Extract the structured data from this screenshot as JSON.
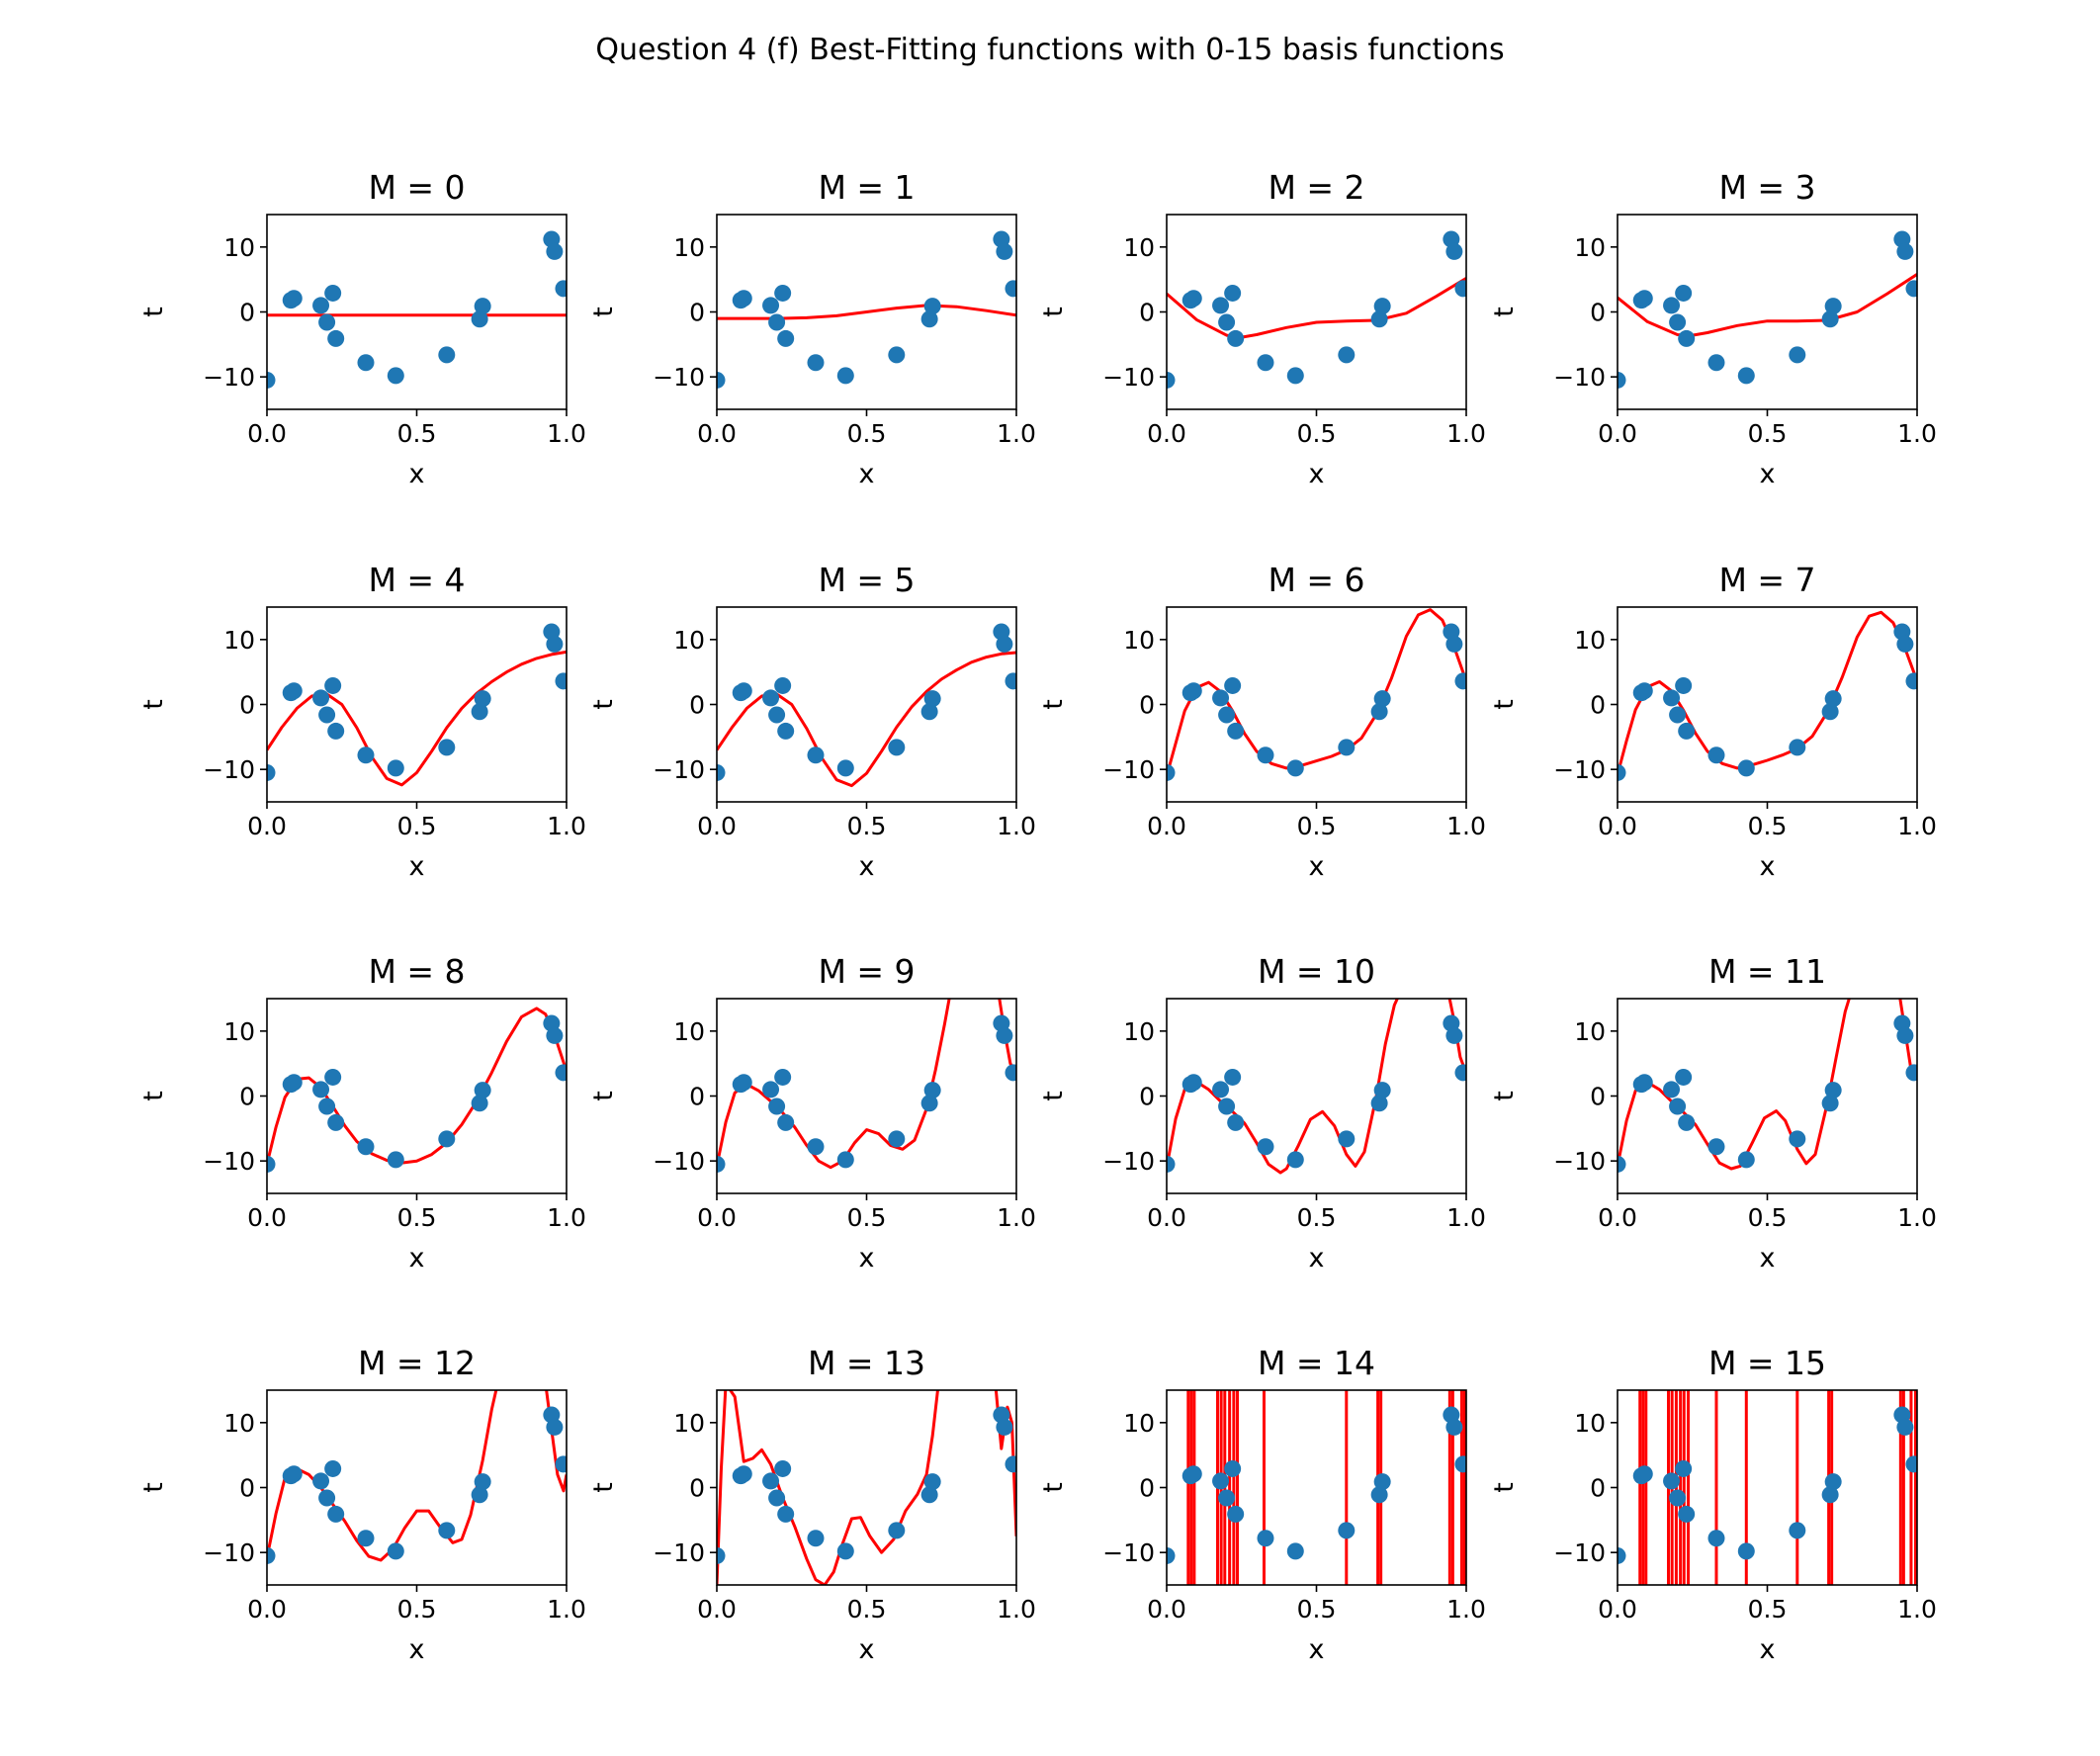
{
  "figure": {
    "title": "Question 4 (f) Best-Fitting functions with 0-15 basis functions"
  },
  "colors": {
    "points": "#1f77b4",
    "curve": "#ff0000",
    "axes": "#000000",
    "background": "#ffffff"
  },
  "chart_data": {
    "type": "scatter",
    "layout": "4x4 grid",
    "shared": {
      "xlabel": "x",
      "ylabel": "t",
      "xlim": [
        0.0,
        1.0
      ],
      "ylim": [
        -15,
        15
      ],
      "xticks": [
        0.0,
        0.5,
        1.0
      ],
      "xtick_labels": [
        "0.0",
        "0.5",
        "1.0"
      ],
      "yticks": [
        10,
        0,
        -10
      ],
      "ytick_labels": [
        "10",
        "0",
        "−10"
      ],
      "points": {
        "x": [
          0.0,
          0.08,
          0.09,
          0.18,
          0.2,
          0.22,
          0.23,
          0.33,
          0.43,
          0.6,
          0.71,
          0.72,
          0.95,
          0.96,
          0.99
        ],
        "y": [
          -10.5,
          1.8,
          2.1,
          1.0,
          -1.6,
          2.9,
          -4.1,
          -7.8,
          -9.8,
          -6.6,
          -1.1,
          0.9,
          11.2,
          9.3,
          3.6
        ]
      }
    },
    "panels": [
      {
        "title": "M = 0",
        "curve": {
          "x": [
            0,
            0.25,
            0.5,
            0.75,
            1
          ],
          "y": [
            -0.5,
            -0.5,
            -0.5,
            -0.5,
            -0.5
          ]
        }
      },
      {
        "title": "M = 1",
        "curve": {
          "x": [
            0,
            0.1,
            0.2,
            0.3,
            0.4,
            0.5,
            0.6,
            0.7,
            0.8,
            0.9,
            1.0
          ],
          "y": [
            -1.0,
            -1.0,
            -1.0,
            -0.9,
            -0.6,
            0.0,
            0.6,
            1.0,
            0.8,
            0.2,
            -0.5
          ]
        }
      },
      {
        "title": "M = 2",
        "curve": {
          "x": [
            0,
            0.1,
            0.2,
            0.25,
            0.3,
            0.4,
            0.5,
            0.6,
            0.7,
            0.8,
            0.9,
            1.0
          ],
          "y": [
            2.8,
            -1.2,
            -3.6,
            -3.9,
            -3.5,
            -2.4,
            -1.6,
            -1.4,
            -1.3,
            -0.2,
            2.4,
            5.2
          ]
        }
      },
      {
        "title": "M = 3",
        "curve": {
          "x": [
            0,
            0.1,
            0.2,
            0.25,
            0.3,
            0.4,
            0.5,
            0.6,
            0.7,
            0.8,
            0.9,
            1.0
          ],
          "y": [
            2.2,
            -1.5,
            -3.5,
            -3.6,
            -3.2,
            -2.1,
            -1.4,
            -1.4,
            -1.3,
            0.0,
            2.8,
            5.8
          ]
        }
      },
      {
        "title": "M = 4",
        "curve": {
          "x": [
            0,
            0.05,
            0.1,
            0.15,
            0.2,
            0.25,
            0.3,
            0.35,
            0.4,
            0.45,
            0.5,
            0.55,
            0.6,
            0.65,
            0.7,
            0.75,
            0.8,
            0.85,
            0.9,
            0.95,
            1.0
          ],
          "y": [
            -7.0,
            -3.5,
            -0.6,
            1.3,
            1.6,
            0.0,
            -3.6,
            -8.1,
            -11.4,
            -12.4,
            -10.5,
            -7.2,
            -3.6,
            -0.6,
            1.7,
            3.5,
            5.0,
            6.2,
            7.1,
            7.7,
            8.1
          ]
        }
      },
      {
        "title": "M = 5",
        "curve": {
          "x": [
            0,
            0.05,
            0.1,
            0.15,
            0.2,
            0.25,
            0.3,
            0.35,
            0.4,
            0.45,
            0.5,
            0.55,
            0.6,
            0.65,
            0.7,
            0.75,
            0.8,
            0.85,
            0.9,
            0.95,
            1.0
          ],
          "y": [
            -7.0,
            -3.6,
            -0.6,
            1.3,
            1.6,
            0.0,
            -3.7,
            -8.2,
            -11.6,
            -12.5,
            -10.6,
            -7.2,
            -3.5,
            -0.4,
            2.0,
            3.9,
            5.3,
            6.5,
            7.3,
            7.8,
            8.0
          ]
        }
      },
      {
        "title": "M = 6",
        "curve": {
          "x": [
            0,
            0.03,
            0.06,
            0.1,
            0.14,
            0.18,
            0.22,
            0.26,
            0.3,
            0.35,
            0.4,
            0.45,
            0.5,
            0.55,
            0.6,
            0.65,
            0.7,
            0.75,
            0.8,
            0.84,
            0.88,
            0.92,
            0.96,
            1.0
          ],
          "y": [
            -11.0,
            -6.0,
            -1.0,
            2.6,
            3.4,
            2.0,
            -1.0,
            -4.5,
            -7.2,
            -9.1,
            -9.8,
            -9.4,
            -8.7,
            -8.0,
            -7.0,
            -5.2,
            -1.5,
            4.0,
            10.5,
            13.8,
            14.6,
            13.0,
            8.8,
            3.6
          ]
        }
      },
      {
        "title": "M = 7",
        "curve": {
          "x": [
            0,
            0.03,
            0.06,
            0.1,
            0.14,
            0.18,
            0.22,
            0.26,
            0.3,
            0.35,
            0.4,
            0.45,
            0.5,
            0.55,
            0.6,
            0.65,
            0.7,
            0.75,
            0.8,
            0.84,
            0.88,
            0.92,
            0.96,
            1.0
          ],
          "y": [
            -10.8,
            -5.6,
            -0.8,
            2.7,
            3.5,
            2.1,
            -0.9,
            -4.4,
            -7.2,
            -9.1,
            -9.8,
            -9.3,
            -8.6,
            -7.8,
            -6.8,
            -4.9,
            -1.2,
            4.2,
            10.4,
            13.6,
            14.2,
            12.6,
            8.6,
            3.6
          ]
        }
      },
      {
        "title": "M = 8",
        "curve": {
          "x": [
            0,
            0.03,
            0.06,
            0.1,
            0.14,
            0.18,
            0.22,
            0.26,
            0.3,
            0.35,
            0.4,
            0.45,
            0.5,
            0.55,
            0.6,
            0.65,
            0.7,
            0.75,
            0.8,
            0.85,
            0.9,
            0.93,
            0.96,
            1.0
          ],
          "y": [
            -10.5,
            -4.8,
            -0.2,
            2.6,
            2.8,
            1.3,
            -1.6,
            -4.6,
            -7.0,
            -8.9,
            -9.9,
            -10.3,
            -10.0,
            -9.0,
            -7.2,
            -4.4,
            -0.8,
            3.6,
            8.4,
            12.2,
            13.5,
            12.6,
            9.4,
            3.8
          ]
        }
      },
      {
        "title": "M = 9",
        "curve": {
          "x": [
            0,
            0.03,
            0.06,
            0.1,
            0.14,
            0.18,
            0.22,
            0.26,
            0.3,
            0.34,
            0.38,
            0.42,
            0.46,
            0.5,
            0.54,
            0.58,
            0.62,
            0.66,
            0.7,
            0.73,
            0.76,
            0.78,
            0.94,
            0.96,
            0.98,
            1.0
          ],
          "y": [
            -10.8,
            -4.0,
            0.5,
            1.8,
            0.8,
            -0.8,
            -2.6,
            -4.8,
            -7.6,
            -10.0,
            -11.0,
            -10.0,
            -7.2,
            -5.2,
            -5.8,
            -7.6,
            -8.2,
            -6.8,
            -2.0,
            4.0,
            11.0,
            16.0,
            16.0,
            10.0,
            5.0,
            3.5
          ]
        }
      },
      {
        "title": "M = 10",
        "curve": {
          "x": [
            0,
            0.03,
            0.06,
            0.1,
            0.14,
            0.18,
            0.22,
            0.26,
            0.3,
            0.34,
            0.38,
            0.4,
            0.44,
            0.48,
            0.52,
            0.56,
            0.6,
            0.63,
            0.66,
            0.7,
            0.73,
            0.76,
            0.78,
            0.94,
            0.96,
            0.98,
            1.0
          ],
          "y": [
            -11.0,
            -3.5,
            1.0,
            2.2,
            1.0,
            -0.8,
            -2.4,
            -4.2,
            -7.2,
            -10.5,
            -11.8,
            -11.2,
            -7.6,
            -3.6,
            -2.4,
            -4.6,
            -9.0,
            -10.8,
            -8.6,
            0.0,
            8.0,
            14.0,
            16.0,
            16.0,
            11.5,
            6.0,
            3.5
          ]
        }
      },
      {
        "title": "M = 11",
        "curve": {
          "x": [
            0,
            0.03,
            0.06,
            0.1,
            0.14,
            0.18,
            0.22,
            0.26,
            0.3,
            0.34,
            0.38,
            0.41,
            0.45,
            0.49,
            0.53,
            0.56,
            0.6,
            0.63,
            0.66,
            0.7,
            0.73,
            0.76,
            0.78,
            0.94,
            0.96,
            0.98,
            1.0
          ],
          "y": [
            -10.8,
            -3.8,
            0.8,
            2.1,
            1.0,
            -0.8,
            -2.5,
            -4.4,
            -7.4,
            -10.3,
            -11.2,
            -10.8,
            -7.2,
            -3.4,
            -2.3,
            -3.8,
            -8.2,
            -10.4,
            -9.0,
            -1.2,
            6.0,
            13.0,
            16.0,
            16.0,
            10.0,
            4.0,
            3.0
          ]
        }
      },
      {
        "title": "M = 12",
        "curve": {
          "x": [
            0,
            0.03,
            0.06,
            0.1,
            0.14,
            0.18,
            0.22,
            0.26,
            0.3,
            0.34,
            0.38,
            0.42,
            0.46,
            0.5,
            0.54,
            0.58,
            0.62,
            0.65,
            0.68,
            0.72,
            0.75,
            0.77,
            0.93,
            0.95,
            0.97,
            0.99,
            1.0
          ],
          "y": [
            -10.8,
            -4.0,
            1.5,
            2.9,
            2.0,
            0.0,
            -2.6,
            -5.2,
            -8.2,
            -10.6,
            -11.2,
            -9.5,
            -6.2,
            -3.6,
            -3.6,
            -6.2,
            -8.5,
            -8.0,
            -4.2,
            4.2,
            12.0,
            16.0,
            16.0,
            9.0,
            2.0,
            -0.5,
            2.0
          ]
        }
      },
      {
        "title": "M = 13",
        "curve": {
          "x": [
            0,
            0.015,
            0.03,
            0.06,
            0.09,
            0.12,
            0.15,
            0.18,
            0.22,
            0.26,
            0.3,
            0.33,
            0.36,
            0.39,
            0.42,
            0.45,
            0.48,
            0.51,
            0.55,
            0.59,
            0.63,
            0.67,
            0.7,
            0.72,
            0.74,
            0.93,
            0.95,
            0.97,
            0.985,
            1.0
          ],
          "y": [
            -15.0,
            3.0,
            16.0,
            14.0,
            4.0,
            4.5,
            5.8,
            3.6,
            -1.6,
            -6.0,
            -11.0,
            -14.2,
            -15.0,
            -13.0,
            -8.6,
            -4.8,
            -4.6,
            -7.4,
            -10.0,
            -8.0,
            -3.6,
            -1.0,
            2.0,
            8.0,
            16.0,
            16.0,
            6.0,
            12.4,
            10.0,
            -7.5
          ]
        }
      },
      {
        "title": "M = 14",
        "curve_type": "vertical_lines",
        "curve": {
          "x": [
            0.072,
            0.082,
            0.092,
            0.17,
            0.182,
            0.194,
            0.21,
            0.224,
            0.236,
            0.325,
            0.6,
            0.705,
            0.715,
            0.945,
            0.955,
            0.985,
            0.995
          ],
          "y": []
        }
      },
      {
        "title": "M = 15",
        "curve_type": "vertical_lines",
        "curve": {
          "x": [
            0.075,
            0.085,
            0.095,
            0.17,
            0.182,
            0.196,
            0.21,
            0.222,
            0.236,
            0.33,
            0.43,
            0.6,
            0.705,
            0.715,
            0.945,
            0.955,
            0.98,
            0.995
          ],
          "y": []
        }
      }
    ]
  }
}
